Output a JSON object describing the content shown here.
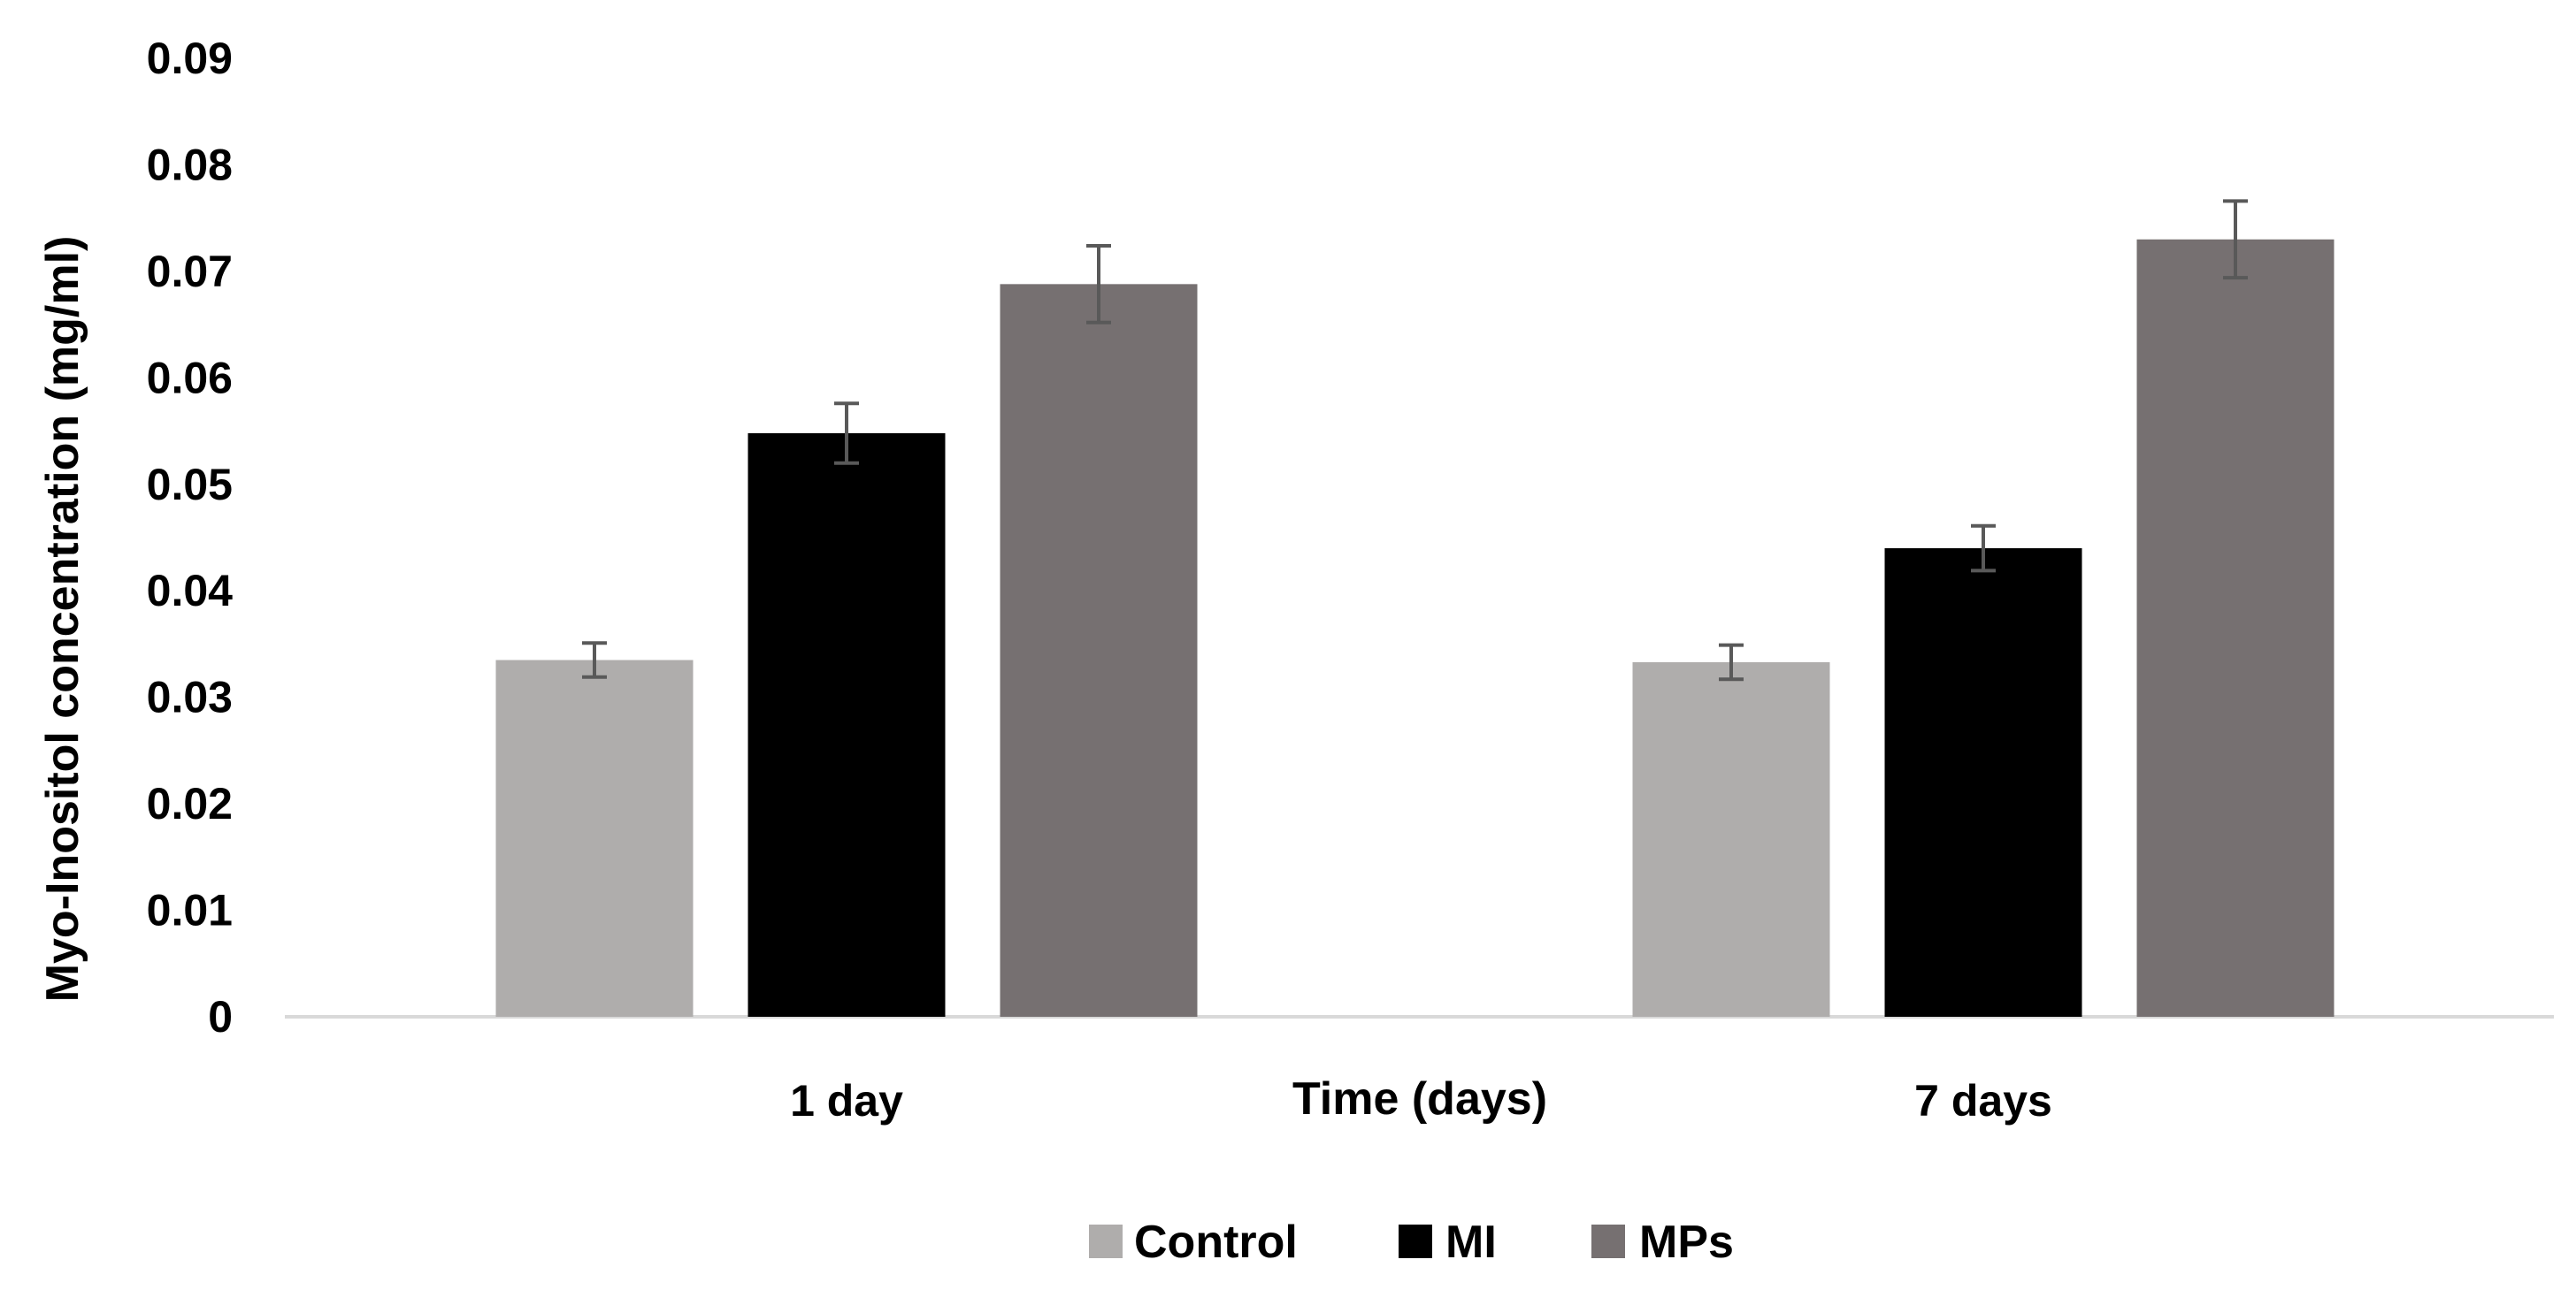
{
  "chart_data": {
    "type": "bar",
    "title": "",
    "xlabel": "Time (days)",
    "ylabel": "Myo-Inositol concentration (mg/ml)",
    "ylim": [
      0,
      0.09
    ],
    "yticks": [
      "0",
      "0.01",
      "0.02",
      "0.03",
      "0.04",
      "0.05",
      "0.06",
      "0.07",
      "0.08",
      "0.09"
    ],
    "categories": [
      "1 day",
      "7 days"
    ],
    "series": [
      {
        "name": "Control",
        "color": "#afadac",
        "values": [
          0.0335,
          0.0333
        ],
        "errors": [
          0.0016,
          0.0016
        ]
      },
      {
        "name": "MI",
        "color": "#000000",
        "values": [
          0.0548,
          0.044
        ],
        "errors": [
          0.0028,
          0.0021
        ]
      },
      {
        "name": "MPs",
        "color": "#767071",
        "values": [
          0.0688,
          0.073
        ],
        "errors": [
          0.0036,
          0.0036
        ]
      }
    ],
    "legend_position": "bottom",
    "grid": false
  }
}
